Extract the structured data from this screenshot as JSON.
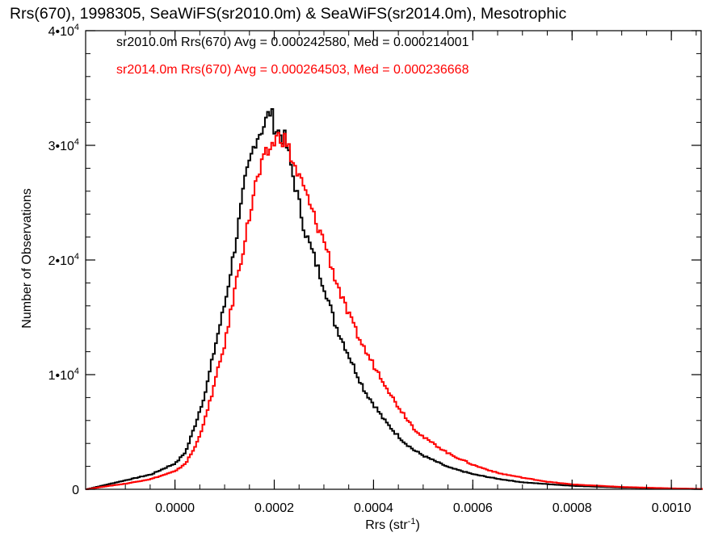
{
  "title": "Rrs(670), 1998305, SeaWiFS(sr2010.0m) & SeaWiFS(sr2014.0m), Mesotrophic",
  "chart_data": {
    "type": "line",
    "xlabel": "Rrs (str",
    "xlabel_sup": "-1",
    "xlabel_end": ")",
    "ylabel": "Number of Observations",
    "xlim": [
      -0.00018,
      0.00106
    ],
    "ylim": [
      0,
      40000
    ],
    "x_ticks": [
      0.0,
      0.0002,
      0.0004,
      0.0006,
      0.0008,
      0.001
    ],
    "x_tick_labels": [
      "0.0000",
      "0.0002",
      "0.0004",
      "0.0006",
      "0.0008",
      "0.0010"
    ],
    "y_ticks": [
      0,
      10000,
      20000,
      30000,
      40000
    ],
    "y_tick_labels": [
      {
        "base": "0",
        "sup": ""
      },
      {
        "base": "1•10",
        "sup": "4"
      },
      {
        "base": "2•10",
        "sup": "4"
      },
      {
        "base": "3•10",
        "sup": "4"
      },
      {
        "base": "4•10",
        "sup": "4"
      }
    ],
    "legend": [
      {
        "text": "sr2010.0m Rrs(670) Avg = 0.000242580, Med = 0.000214001",
        "color": "#000000"
      },
      {
        "text": "sr2014.0m Rrs(670) Avg = 0.000264503, Med = 0.000236668",
        "color": "#ff0000"
      }
    ],
    "series": [
      {
        "color": "#000000",
        "points": [
          [
            -0.00018,
            0
          ],
          [
            -0.00015,
            300
          ],
          [
            -0.0001,
            800
          ],
          [
            -5e-05,
            1300
          ],
          [
            0.0,
            2300
          ],
          [
            2e-05,
            3300
          ],
          [
            4e-05,
            5800
          ],
          [
            6e-05,
            8600
          ],
          [
            8e-05,
            12700
          ],
          [
            0.0001,
            16500
          ],
          [
            0.00012,
            21500
          ],
          [
            0.00014,
            27000
          ],
          [
            0.00016,
            30500
          ],
          [
            0.00018,
            32000
          ],
          [
            0.00019,
            33000
          ],
          [
            0.0002,
            31500
          ],
          [
            0.00022,
            30500
          ],
          [
            0.00024,
            26500
          ],
          [
            0.00026,
            22500
          ],
          [
            0.00028,
            20000
          ],
          [
            0.0003,
            17500
          ],
          [
            0.00032,
            14500
          ],
          [
            0.00034,
            12500
          ],
          [
            0.00036,
            10500
          ],
          [
            0.00038,
            8600
          ],
          [
            0.0004,
            7300
          ],
          [
            0.00042,
            6000
          ],
          [
            0.00044,
            5000
          ],
          [
            0.00046,
            4100
          ],
          [
            0.00048,
            3400
          ],
          [
            0.0005,
            2900
          ],
          [
            0.00055,
            1900
          ],
          [
            0.0006,
            1300
          ],
          [
            0.00065,
            900
          ],
          [
            0.0007,
            600
          ],
          [
            0.00075,
            450
          ],
          [
            0.0008,
            300
          ],
          [
            0.0009,
            150
          ],
          [
            0.001,
            60
          ],
          [
            0.00106,
            20
          ]
        ]
      },
      {
        "color": "#ff0000",
        "points": [
          [
            -0.00018,
            0
          ],
          [
            -0.00015,
            200
          ],
          [
            -0.0001,
            500
          ],
          [
            -5e-05,
            900
          ],
          [
            0.0,
            1600
          ],
          [
            2e-05,
            2300
          ],
          [
            4e-05,
            3800
          ],
          [
            6e-05,
            6300
          ],
          [
            8e-05,
            9600
          ],
          [
            0.0001,
            13000
          ],
          [
            0.00012,
            17800
          ],
          [
            0.00014,
            22000
          ],
          [
            0.00016,
            26500
          ],
          [
            0.00018,
            29000
          ],
          [
            0.0002,
            30500
          ],
          [
            0.00021,
            30800
          ],
          [
            0.00022,
            30500
          ],
          [
            0.00024,
            28000
          ],
          [
            0.00026,
            26000
          ],
          [
            0.00028,
            23500
          ],
          [
            0.0003,
            21500
          ],
          [
            0.00032,
            18500
          ],
          [
            0.00034,
            16000
          ],
          [
            0.00036,
            14000
          ],
          [
            0.00038,
            12200
          ],
          [
            0.0004,
            10700
          ],
          [
            0.00042,
            9300
          ],
          [
            0.00044,
            7700
          ],
          [
            0.00046,
            6500
          ],
          [
            0.00048,
            5300
          ],
          [
            0.0005,
            4500
          ],
          [
            0.00055,
            3100
          ],
          [
            0.0006,
            2100
          ],
          [
            0.00065,
            1400
          ],
          [
            0.0007,
            1000
          ],
          [
            0.00075,
            650
          ],
          [
            0.0008,
            420
          ],
          [
            0.0009,
            200
          ],
          [
            0.001,
            80
          ],
          [
            0.00106,
            30
          ]
        ]
      }
    ]
  }
}
